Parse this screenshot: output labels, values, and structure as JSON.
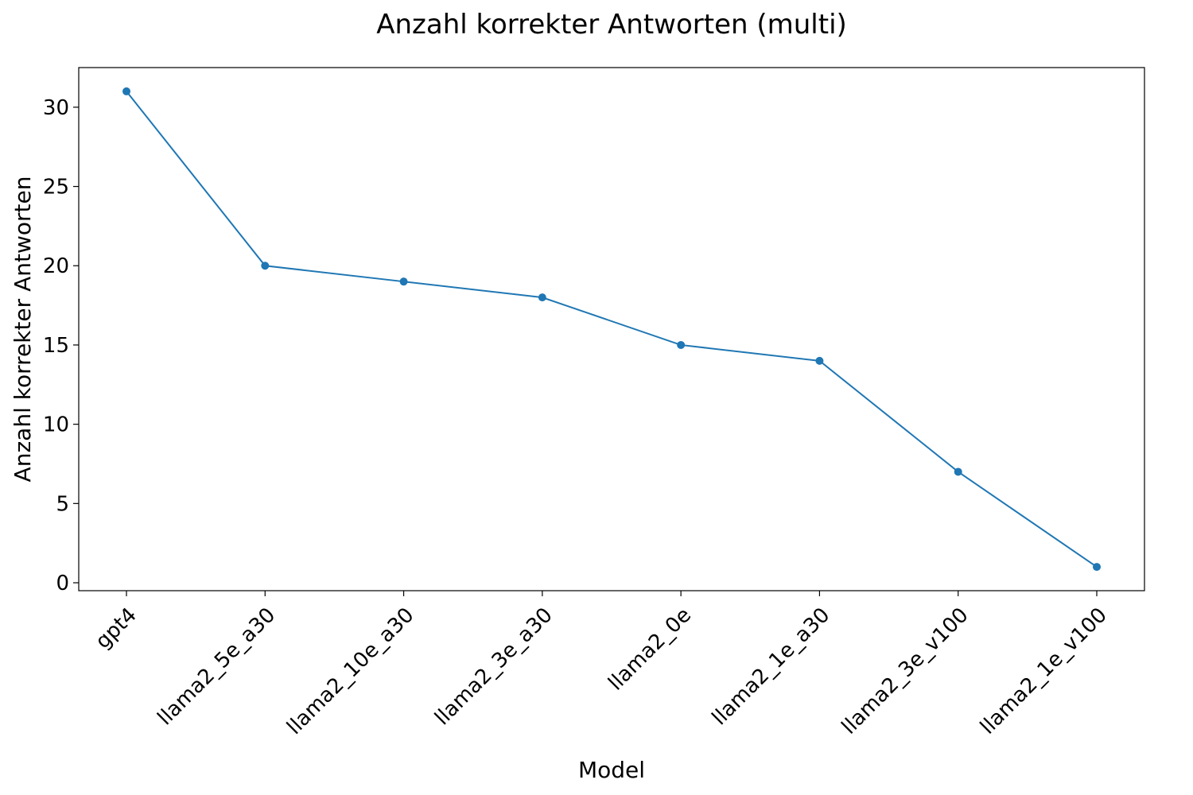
{
  "chart_data": {
    "type": "line",
    "title": "Anzahl korrekter Antworten (multi)",
    "xlabel": "Model",
    "ylabel": "Anzahl korrekter Antworten",
    "categories": [
      "gpt4",
      "llama2_5e_a30",
      "llama2_10e_a30",
      "llama2_3e_a30",
      "llama2_0e",
      "llama2_1e_a30",
      "llama2_3e_v100",
      "llama2_1e_v100"
    ],
    "values": [
      31,
      20,
      19,
      18,
      15,
      14,
      7,
      1
    ],
    "ylim": [
      -0.5,
      32.5
    ],
    "yticks": [
      0,
      5,
      10,
      15,
      20,
      25,
      30
    ],
    "grid": false,
    "legend": "none",
    "color": "#1f77b4",
    "marker": "circle"
  }
}
